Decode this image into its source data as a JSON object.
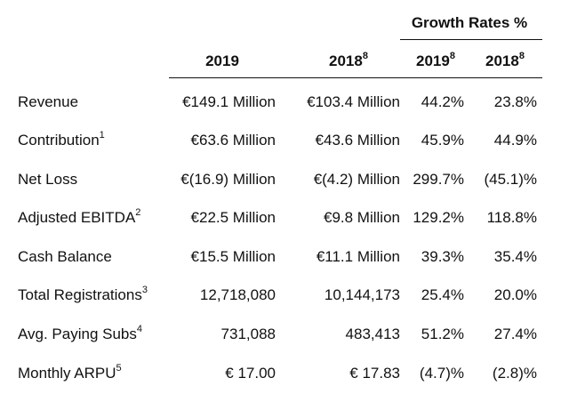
{
  "header": {
    "group_title": "Growth Rates %",
    "columns": [
      {
        "label": "2019",
        "note": ""
      },
      {
        "label": "2018",
        "note": "8"
      },
      {
        "label": "2019",
        "note": "8"
      },
      {
        "label": "2018",
        "note": "8"
      }
    ]
  },
  "rows": [
    {
      "metric": "Revenue",
      "note": "",
      "v2019": "€149.1 Million",
      "v2018": "€103.4 Million",
      "g2019": "44.2%",
      "g2018": "23.8%"
    },
    {
      "metric": "Contribution",
      "note": "1",
      "v2019": "€63.6 Million",
      "v2018": "€43.6 Million",
      "g2019": "45.9%",
      "g2018": "44.9%"
    },
    {
      "metric": "Net Loss",
      "note": "",
      "v2019": "€(16.9) Million",
      "v2018": "€(4.2) Million",
      "g2019": "299.7%",
      "g2018": "(45.1)%"
    },
    {
      "metric": "Adjusted EBITDA",
      "note": "2",
      "v2019": "€22.5 Million",
      "v2018": "€9.8 Million",
      "g2019": "129.2%",
      "g2018": "118.8%"
    },
    {
      "metric": "Cash Balance",
      "note": "",
      "v2019": "€15.5 Million",
      "v2018": "€11.1 Million",
      "g2019": "39.3%",
      "g2018": "35.4%"
    },
    {
      "metric": "Total Registrations",
      "note": "3",
      "v2019": "12,718,080",
      "v2018": "10,144,173",
      "g2019": "25.4%",
      "g2018": "20.0%"
    },
    {
      "metric": "Avg. Paying Subs",
      "note": "4",
      "v2019": "731,088",
      "v2018": "483,413",
      "g2019": "51.2%",
      "g2018": "27.4%"
    },
    {
      "metric": "Monthly ARPU",
      "note": "5",
      "v2019": "€ 17.00",
      "v2018": "€ 17.83",
      "g2019": "(4.7)%",
      "g2018": "(2.8)%"
    }
  ]
}
